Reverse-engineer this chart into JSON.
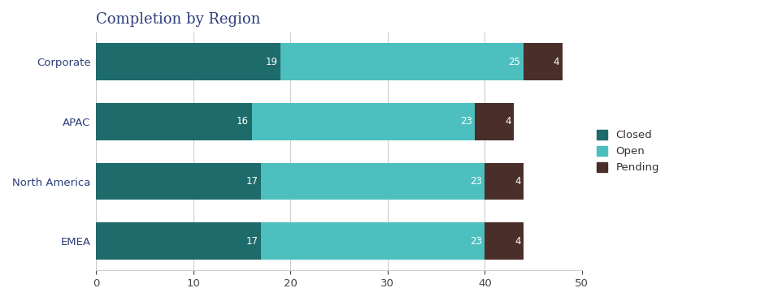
{
  "title": "Completion by Region",
  "categories": [
    "Corporate",
    "APAC",
    "North America",
    "EMEA"
  ],
  "series": {
    "Closed": [
      19,
      16,
      17,
      17
    ],
    "Open": [
      25,
      23,
      23,
      23
    ],
    "Pending": [
      4,
      4,
      4,
      4
    ]
  },
  "colors": {
    "Closed": "#1e6b6b",
    "Open": "#4dbfbf",
    "Pending": "#4a2e2a"
  },
  "xlim": [
    0,
    50
  ],
  "xticks": [
    0,
    10,
    20,
    30,
    40,
    50
  ],
  "title_fontsize": 13,
  "tick_fontsize": 9.5,
  "label_fontsize": 9.5,
  "bar_height": 0.62,
  "background_color": "#ffffff",
  "plot_bg_color": "#ffffff",
  "text_color": "#ffffff",
  "title_color": "#2c3e7a",
  "ytick_color": "#2c3e7a",
  "grid_color": "#cccccc",
  "value_fontsize": 8.5
}
